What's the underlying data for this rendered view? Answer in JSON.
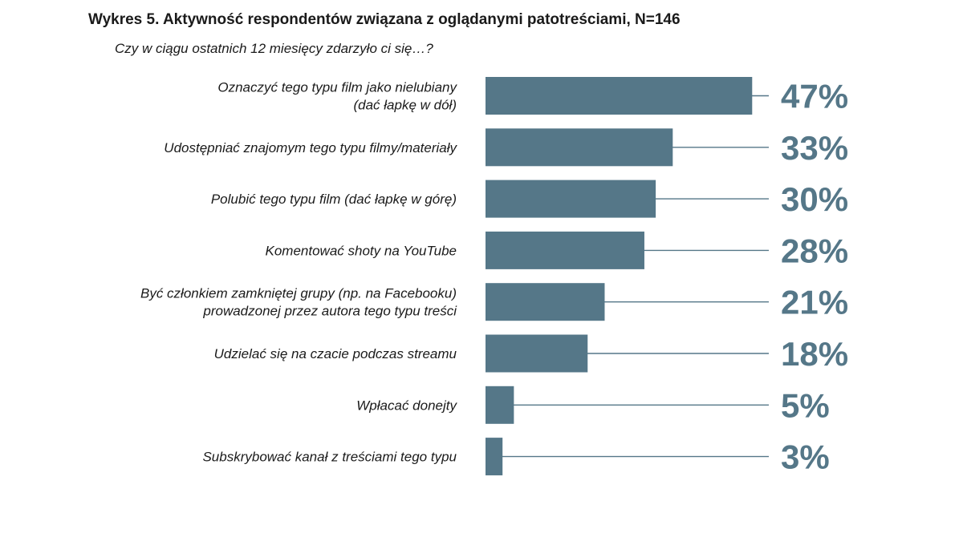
{
  "title": "Wykres 5. Aktywność respondentów związana z oglądanymi patotreściami, N=146",
  "subtitle": "Czy w ciągu ostatnich 12 miesięcy zdarzyło ci się…?",
  "colors": {
    "bar": "#557788",
    "leader_line": "#557788",
    "value_text": "#557788"
  },
  "chart_data": {
    "type": "bar",
    "orientation": "horizontal",
    "categories": [
      [
        "Oznaczyć tego typu film jako nielubiany",
        "(dać łapkę w dół)"
      ],
      [
        "Udostępniać znajomym tego typu filmy/materiały"
      ],
      [
        "Polubić tego typu film (dać łapkę w górę)"
      ],
      [
        "Komentować shoty na YouTube"
      ],
      [
        "Być członkiem zamkniętej grupy (np. na Facebooku)",
        "prowadzonej przez autora tego typu treści"
      ],
      [
        "Udzielać się na czacie podczas streamu"
      ],
      [
        "Wpłacać donejty"
      ],
      [
        "Subskrybować kanał z treściami tego typu"
      ]
    ],
    "values": [
      47,
      33,
      30,
      28,
      21,
      18,
      5,
      3
    ],
    "value_labels": [
      "47%",
      "33%",
      "30%",
      "28%",
      "21%",
      "18%",
      "5%",
      "3%"
    ],
    "unit": "%",
    "xlim": [
      0,
      100
    ],
    "grid": false,
    "legend": "none"
  }
}
